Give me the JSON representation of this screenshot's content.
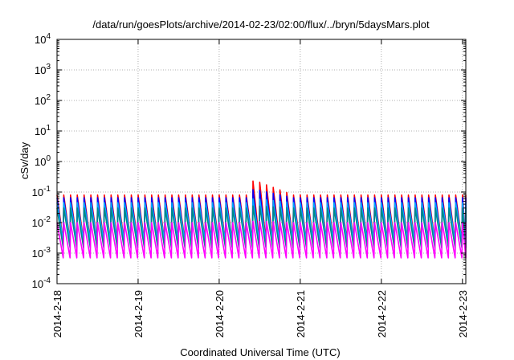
{
  "chart_data": {
    "type": "line",
    "title": "/data/run/goesPlots/archive/2014-02-23/02:00/flux/../bryn/5daysMars.plot",
    "xlabel": "Coordinated Universal Time (UTC)",
    "ylabel": "cSv/day",
    "xlim": [
      "2014-02-18 00:00",
      "2014-02-23 01:00"
    ],
    "ylog": true,
    "ylim": [
      0.0001,
      10000
    ],
    "grid": true,
    "x_ticks": [
      "2014-2-18",
      "2014-2-19",
      "2014-2-20",
      "2014-2-21",
      "2014-2-22",
      "2014-2-23"
    ],
    "y_ticks": [
      {
        "base": "10",
        "exp": "-4"
      },
      {
        "base": "10",
        "exp": "-3"
      },
      {
        "base": "10",
        "exp": "-2"
      },
      {
        "base": "10",
        "exp": "-1"
      },
      {
        "base": "10",
        "exp": "0"
      },
      {
        "base": "10",
        "exp": "1"
      },
      {
        "base": "10",
        "exp": "2"
      },
      {
        "base": "10",
        "exp": "3"
      },
      {
        "base": "10",
        "exp": "4"
      }
    ],
    "sawtooth_period_hours": 2,
    "series": [
      {
        "color": "#ff0000",
        "peak": 0.08,
        "trough": 0.0025,
        "event_peak": 0.23
      },
      {
        "color": "#0000ff",
        "peak": 0.065,
        "trough": 0.002,
        "event_peak": 0.12
      },
      {
        "color": "#00aaff",
        "peak": 0.045,
        "trough": 0.0025,
        "event_peak": 0.06
      },
      {
        "color": "#008888",
        "peak": 0.03,
        "trough": 0.0015,
        "event_peak": 0.035
      },
      {
        "color": "#ff00ff",
        "peak": 0.01,
        "trough": 0.0007,
        "event_peak": 0.011
      }
    ]
  }
}
